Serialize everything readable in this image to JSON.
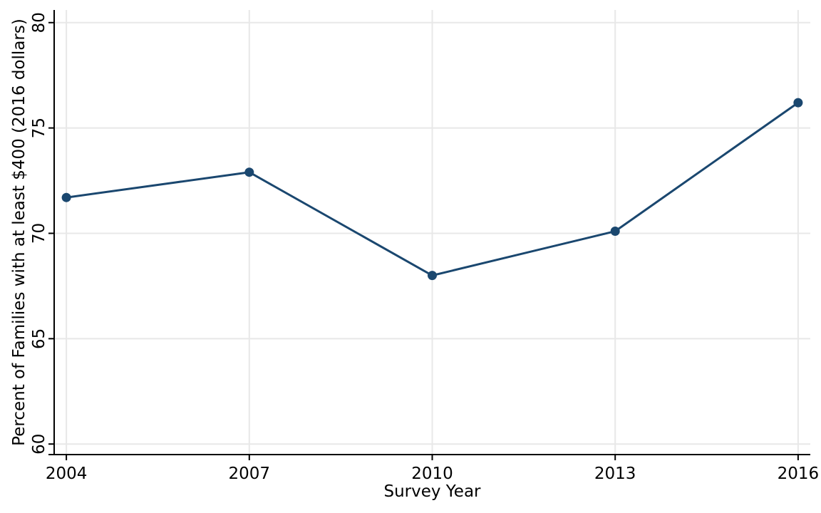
{
  "chart_data": {
    "type": "line",
    "x": [
      2004,
      2007,
      2010,
      2013,
      2016
    ],
    "values": [
      71.7,
      72.9,
      68.0,
      70.1,
      76.2
    ],
    "xlabel": "Survey Year",
    "ylabel": "Percent of Families with at least $400 (2016 dollars)",
    "xtick_labels": [
      "2004",
      "2007",
      "2010",
      "2013",
      "2016"
    ],
    "ytick_labels": [
      "60",
      "65",
      "70",
      "75",
      "80"
    ],
    "xticks": [
      2004,
      2007,
      2010,
      2013,
      2016
    ],
    "yticks": [
      60,
      65,
      70,
      75,
      80
    ],
    "xlim": [
      2003.8,
      2016.2
    ],
    "ylim": [
      59.5,
      80.6
    ],
    "grid": true,
    "legend": false,
    "line_color": "#1a476f",
    "marker": "circle",
    "marker_size": 13,
    "line_width": 3,
    "grid_color": "#e8e8e8",
    "axis_color": "#000000",
    "background": "#ffffff"
  }
}
